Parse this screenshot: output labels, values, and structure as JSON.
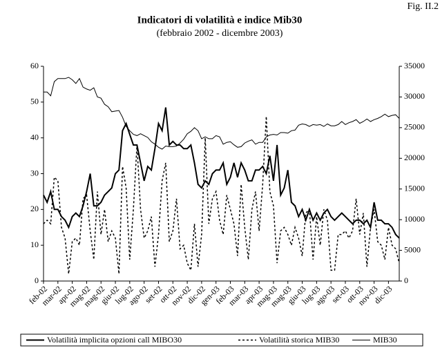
{
  "chart_data": {
    "type": "line",
    "figure_label": "Fig. II.2",
    "title": "Indicatori di volatilità e indice Mib30",
    "subtitle": "(febbraio 2002 - dicembre 2003)",
    "categories": [
      "feb-02",
      null,
      null,
      null,
      "mar-02",
      null,
      null,
      null,
      "apr-02",
      null,
      null,
      null,
      "mag-02",
      null,
      null,
      null,
      "mag-02",
      null,
      null,
      null,
      "giu-02",
      null,
      null,
      null,
      "lug-02",
      null,
      null,
      null,
      "ago-02",
      null,
      null,
      null,
      "set-02",
      null,
      null,
      null,
      "ott-02",
      null,
      null,
      null,
      "nov-02",
      null,
      null,
      null,
      "dic-02",
      null,
      null,
      null,
      "gen-03",
      null,
      null,
      null,
      "feb-03",
      null,
      null,
      null,
      "mar-03",
      null,
      null,
      null,
      "apr-03",
      null,
      null,
      null,
      "mag-03",
      null,
      null,
      null,
      "mag-03",
      null,
      null,
      null,
      "giu-03",
      null,
      null,
      null,
      "lug-03",
      null,
      null,
      null,
      "ago-03",
      null,
      null,
      null,
      "set-03",
      null,
      null,
      null,
      "ott-03",
      null,
      null,
      null,
      "nov-03",
      null,
      null,
      null,
      "dic-03",
      null,
      null,
      null
    ],
    "ylim": [
      0,
      60
    ],
    "yticks": [
      0,
      10,
      20,
      30,
      40,
      50,
      60
    ],
    "y2lim": [
      0,
      35000
    ],
    "y2ticks": [
      0,
      5000,
      10000,
      15000,
      20000,
      25000,
      30000,
      35000
    ],
    "legend": "bottom",
    "series": [
      {
        "name": "Volatilità implicita opzioni call MIBO30",
        "color": "#000000",
        "style": "solid",
        "width": 2,
        "axis": "y",
        "values": [
          24,
          22,
          25,
          20,
          20,
          18,
          17,
          15,
          18,
          19,
          18,
          21,
          25,
          30,
          21,
          21,
          22,
          24,
          25,
          26,
          30,
          31,
          42,
          44,
          41,
          38,
          38,
          33,
          28,
          32,
          31,
          37,
          44,
          42,
          48.5,
          38,
          39,
          38,
          38,
          37,
          37,
          38,
          33,
          27,
          26,
          28,
          27,
          30,
          31,
          31,
          33,
          27,
          29,
          33,
          29,
          33,
          31,
          28,
          28,
          31,
          31,
          32,
          30,
          35,
          28,
          38,
          24,
          26,
          31,
          22,
          21,
          18,
          20,
          17,
          20,
          17,
          19,
          17,
          19,
          20,
          18,
          17,
          18,
          19,
          18,
          17,
          16,
          17,
          17,
          16,
          17,
          15,
          22,
          17,
          17,
          16,
          16,
          15,
          13,
          12
        ]
      },
      {
        "name": "Volatilità storica MIB30",
        "color": "#000000",
        "style": "dashed",
        "width": 1.5,
        "axis": "y",
        "values": [
          16,
          17,
          16,
          29,
          28,
          15,
          12,
          2,
          11,
          12,
          10,
          23,
          24,
          14,
          6,
          25,
          13,
          20,
          11,
          14,
          12,
          2,
          32,
          26,
          6,
          20,
          38,
          20,
          12,
          14,
          18,
          4,
          13,
          28,
          33,
          11,
          14,
          23,
          9,
          10,
          5,
          3,
          16,
          4,
          13,
          40,
          16,
          23,
          25,
          17,
          13,
          24,
          20,
          16,
          7,
          27,
          15,
          6,
          20,
          25,
          14,
          27,
          46,
          25,
          21,
          5,
          14,
          15,
          13,
          10,
          15,
          12,
          7,
          19,
          20,
          6,
          18,
          10,
          20,
          17,
          3,
          3,
          13,
          13,
          14,
          12,
          14,
          23,
          13,
          19,
          4,
          15,
          20,
          11,
          10,
          6,
          15,
          10,
          9,
          5
        ]
      },
      {
        "name": "MIB30",
        "color": "#000000",
        "style": "solid",
        "width": 1,
        "axis": "y2",
        "values": [
          30800,
          30800,
          30200,
          32500,
          33000,
          33000,
          33000,
          33200,
          32800,
          32200,
          33000,
          31600,
          31300,
          31100,
          31500,
          30000,
          29800,
          28800,
          28400,
          27600,
          27700,
          27800,
          26700,
          25200,
          24500,
          23900,
          23700,
          24000,
          23700,
          23400,
          22700,
          22300,
          21800,
          21500,
          22000,
          21900,
          21900,
          22000,
          22500,
          23100,
          24000,
          24400,
          25000,
          24500,
          23200,
          23500,
          23200,
          23200,
          23700,
          23500,
          22300,
          22600,
          22700,
          22200,
          21800,
          21900,
          22500,
          22800,
          23000,
          22300,
          22600,
          22600,
          23500,
          23800,
          23900,
          23800,
          24200,
          24200,
          24100,
          24500,
          24600,
          25400,
          25600,
          25500,
          25200,
          25500,
          25400,
          25500,
          25200,
          25600,
          25300,
          25300,
          25500,
          26000,
          25500,
          25800,
          26000,
          26300,
          25700,
          26000,
          26400,
          26000,
          26300,
          26500,
          26800,
          27200,
          26800,
          27000,
          27100,
          26500
        ]
      }
    ]
  }
}
